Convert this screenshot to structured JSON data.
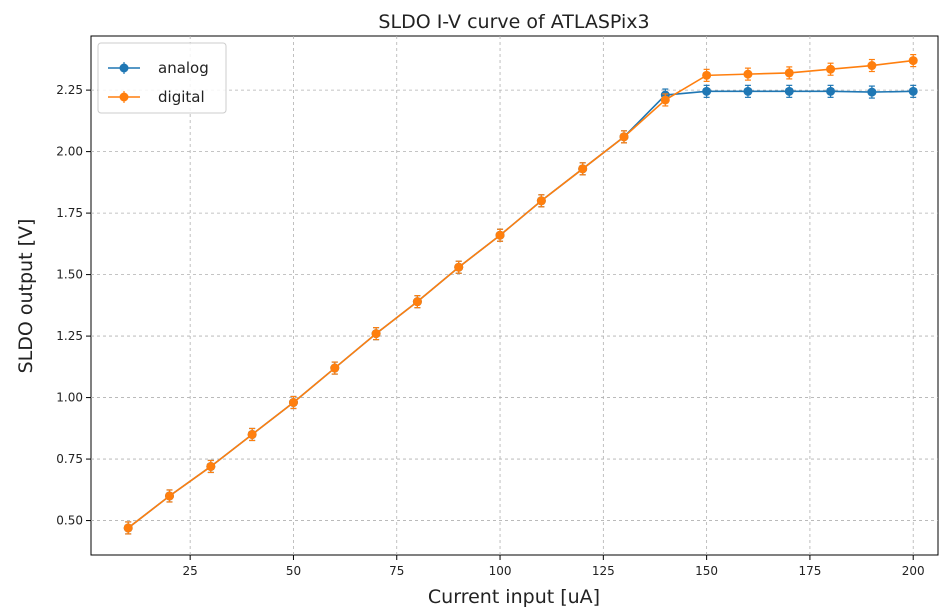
{
  "chart_data": {
    "type": "line",
    "title": "SLDO I-V curve of ATLASPix3",
    "xlabel": "Current input [uA]",
    "ylabel": "SLDO output [V]",
    "xlim": [
      1,
      206
    ],
    "ylim": [
      0.36,
      2.47
    ],
    "xticks": [
      25,
      50,
      75,
      100,
      125,
      150,
      175,
      200
    ],
    "yticks": [
      0.5,
      0.75,
      1.0,
      1.25,
      1.5,
      1.75,
      2.0,
      2.25
    ],
    "xtick_labels": [
      "25",
      "50",
      "75",
      "100",
      "125",
      "150",
      "175",
      "200"
    ],
    "ytick_labels": [
      "0.50",
      "0.75",
      "1.00",
      "1.25",
      "1.50",
      "1.75",
      "2.00",
      "2.25"
    ],
    "grid": true,
    "legend_position": "top-left",
    "x": [
      10,
      20,
      30,
      40,
      50,
      60,
      70,
      80,
      90,
      100,
      110,
      120,
      130,
      140,
      150,
      160,
      170,
      180,
      190,
      200
    ],
    "series": [
      {
        "name": "analog",
        "color": "#1f77b4",
        "marker": "circle-errorbar",
        "values": [
          0.47,
          0.6,
          0.72,
          0.85,
          0.98,
          1.12,
          1.26,
          1.39,
          1.53,
          1.66,
          1.8,
          1.93,
          2.06,
          2.23,
          2.245,
          2.245,
          2.245,
          2.245,
          2.242,
          2.245
        ]
      },
      {
        "name": "digital",
        "color": "#ff7f0e",
        "marker": "circle-errorbar",
        "values": [
          0.47,
          0.6,
          0.72,
          0.85,
          0.98,
          1.12,
          1.26,
          1.39,
          1.53,
          1.66,
          1.8,
          1.93,
          2.06,
          2.21,
          2.31,
          2.315,
          2.32,
          2.335,
          2.35,
          2.37
        ]
      }
    ]
  }
}
